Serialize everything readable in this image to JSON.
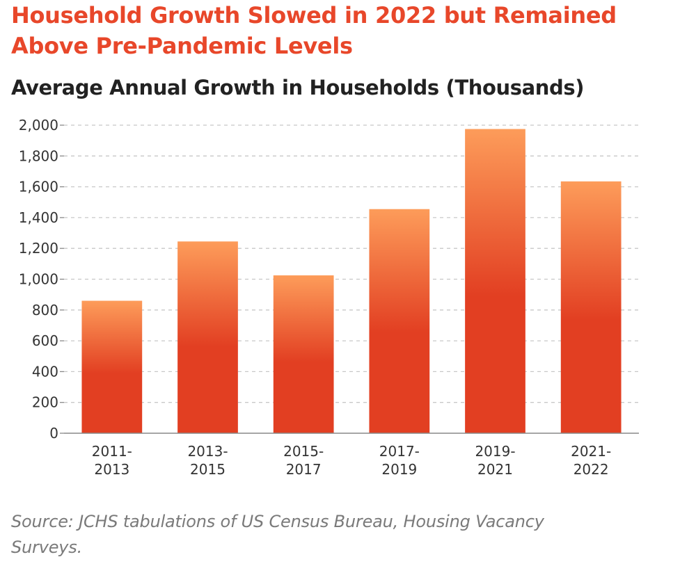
{
  "title": "Household Growth Slowed in 2022 but Remained Above Pre-Pandemic Levels",
  "source": "Source: JCHS tabulations of US Census Bureau, Housing Vacancy Surveys.",
  "colors": {
    "title": "#e8472a",
    "bar_top": "#fd9c5a",
    "bar_bottom": "#e23f22",
    "grid": "#c8c8c8",
    "axis": "#888888"
  },
  "chart_data": {
    "type": "bar",
    "title": "Household Growth Slowed in 2022 but Remained Above Pre-Pandemic Levels",
    "subtitle": "Average Annual Growth in Households (Thousands)",
    "xlabel": "",
    "ylabel": "",
    "categories": [
      [
        "2011-",
        "2013"
      ],
      [
        "2013-",
        "2015"
      ],
      [
        "2015-",
        "2017"
      ],
      [
        "2017-",
        "2019"
      ],
      [
        "2019-",
        "2021"
      ],
      [
        "2021-",
        "2022"
      ]
    ],
    "values": [
      860,
      1245,
      1025,
      1455,
      1975,
      1635
    ],
    "ylim": [
      0,
      2000
    ],
    "yticks": [
      0,
      200,
      400,
      600,
      800,
      1000,
      1200,
      1400,
      1600,
      1800,
      2000
    ],
    "ytick_labels": [
      "0",
      "200",
      "400",
      "600",
      "800",
      "1,000",
      "1,200",
      "1,400",
      "1,600",
      "1,800",
      "2,000"
    ],
    "grid": true,
    "legend": "none"
  }
}
